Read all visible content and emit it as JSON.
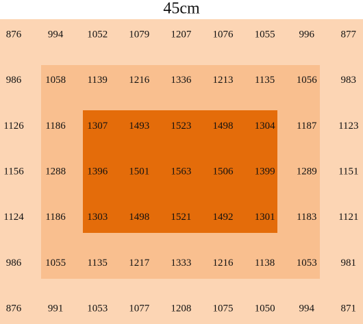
{
  "title": "45cm",
  "table": {
    "rows": [
      [
        876,
        994,
        1052,
        1079,
        1207,
        1076,
        1055,
        996,
        877
      ],
      [
        986,
        1058,
        1139,
        1216,
        1336,
        1213,
        1135,
        1056,
        983
      ],
      [
        1126,
        1186,
        1307,
        1493,
        1523,
        1498,
        1304,
        1187,
        1123
      ],
      [
        1156,
        1288,
        1396,
        1501,
        1563,
        1506,
        1399,
        1289,
        1151
      ],
      [
        1124,
        1186,
        1303,
        1498,
        1521,
        1492,
        1301,
        1183,
        1121
      ],
      [
        986,
        1055,
        1135,
        1217,
        1333,
        1216,
        1138,
        1053,
        981
      ],
      [
        876,
        991,
        1053,
        1077,
        1208,
        1075,
        1050,
        994,
        871
      ]
    ]
  }
}
